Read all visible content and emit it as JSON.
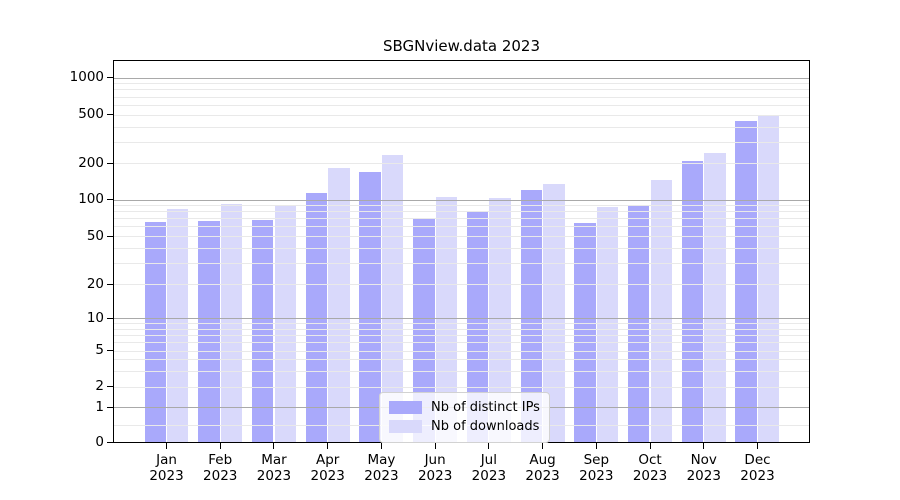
{
  "title": "SBGNview.data 2023",
  "chart_data": {
    "type": "bar",
    "title": "SBGNview.data 2023",
    "categories": [
      "Jan 2023",
      "Feb 2023",
      "Mar 2023",
      "Apr 2023",
      "May 2023",
      "Jun 2023",
      "Jul 2023",
      "Aug 2023",
      "Sep 2023",
      "Oct 2023",
      "Nov 2023",
      "Dec 2023"
    ],
    "x_tick_months": [
      "Jan",
      "Feb",
      "Mar",
      "Apr",
      "May",
      "Jun",
      "Jul",
      "Aug",
      "Sep",
      "Oct",
      "Nov",
      "Dec"
    ],
    "x_tick_year": "2023",
    "series": [
      {
        "name": "Nb of distinct IPs",
        "color": "#a9a9fb",
        "values": [
          65,
          67,
          68,
          113,
          170,
          70,
          79,
          120,
          64,
          90,
          210,
          445
        ]
      },
      {
        "name": "Nb of downloads",
        "color": "#d9d9fb",
        "values": [
          83,
          93,
          90,
          183,
          232,
          106,
          104,
          136,
          87,
          145,
          242,
          500
        ]
      }
    ],
    "xlabel": "",
    "ylabel": "",
    "yscale": "symlog",
    "ylim": [
      0,
      1200
    ],
    "ytick_labels": [
      0,
      1,
      2,
      5,
      10,
      20,
      50,
      100,
      200,
      500,
      1000
    ],
    "ymajor_gridlines": [
      1,
      10,
      100,
      1000
    ],
    "yminor_gridlines": [
      0.5,
      3,
      4,
      6,
      7,
      8,
      9,
      30,
      40,
      60,
      70,
      80,
      90,
      300,
      400,
      600,
      700,
      800,
      900
    ],
    "grid": true,
    "legend_position": "lower center"
  },
  "colors": {
    "bar_distinct_ips": "#a9a9fb",
    "bar_downloads": "#d9d9fb",
    "grid_major": "#a9a9a9",
    "grid_minor": "#e9e9e9",
    "axis": "#000000",
    "background": "#ffffff"
  }
}
